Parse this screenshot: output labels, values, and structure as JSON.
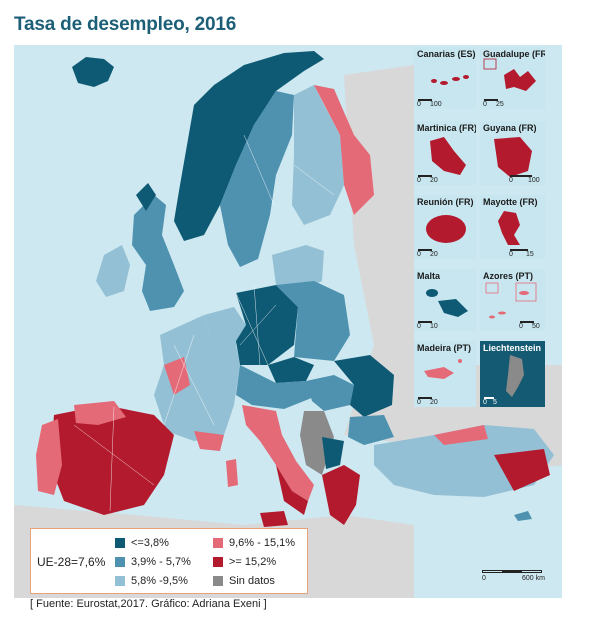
{
  "title": "Tasa de desempleo, 2016",
  "legend": {
    "total": "UE-28=7,6%",
    "items": [
      {
        "label": "<=3,8%",
        "color": "#0e5a74"
      },
      {
        "label": "3,9% - 5,7%",
        "color": "#4e92b0"
      },
      {
        "label": "5,8% -9,5%",
        "color": "#93c0d4"
      },
      {
        "label": "9,6% - 15,1%",
        "color": "#e46a78"
      },
      {
        "label": ">= 15,2%",
        "color": "#b31a2e"
      },
      {
        "label": "Sin datos",
        "color": "#8a8a8a"
      }
    ]
  },
  "insets": [
    {
      "name": "Canarias (ES)",
      "scale": [
        "0",
        "100"
      ]
    },
    {
      "name": "Guadalupe (FR)",
      "scale": [
        "0",
        "25"
      ]
    },
    {
      "name": "Martinica (FR)",
      "scale": [
        "0",
        "20"
      ]
    },
    {
      "name": "Guyana (FR)",
      "scale": [
        "0",
        "100"
      ]
    },
    {
      "name": "Reunión (FR)",
      "scale": [
        "0",
        "20"
      ]
    },
    {
      "name": "Mayotte (FR)",
      "scale": [
        "0",
        "15"
      ]
    },
    {
      "name": "Malta",
      "scale": [
        "0",
        "10"
      ]
    },
    {
      "name": "Azores (PT)",
      "scale": [
        "0",
        "50"
      ]
    },
    {
      "name": "Madeira (PT)",
      "scale": [
        "0",
        "20"
      ]
    },
    {
      "name": "Liechtenstein",
      "scale": [
        "0",
        "5"
      ]
    }
  ],
  "scale_bar": {
    "start": "0",
    "end": "600 km"
  },
  "source": "[ Fuente: Eurostat,2017. Gráfico: Adriana Exeni ]"
}
